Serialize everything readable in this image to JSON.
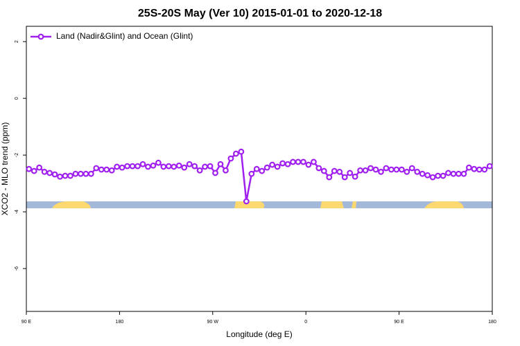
{
  "chart_data": {
    "type": "line",
    "title": "25S-20S May (Ver 10)   2015-01-01 to 2020-12-18",
    "xlabel": "Longitude (deg E)",
    "ylabel": "XCO2 - MLO trend (ppm)",
    "xlim": [
      90,
      540
    ],
    "ylim": [
      -7.51,
      2.54
    ],
    "xticks": [
      {
        "value": 90,
        "label": "90 E"
      },
      180,
      {
        "value": 270,
        "label": "90 W"
      },
      {
        "value": 360,
        "label": "0"
      },
      {
        "value": 450,
        "label": "90 E"
      },
      {
        "value": 540,
        "label": "180"
      }
    ],
    "yticks": [
      2,
      0,
      -2,
      -4,
      -6
    ],
    "grid": false,
    "legend": "upper left",
    "x": [
      92.5,
      97.5,
      102.5,
      107.5,
      112.5,
      117.5,
      122.5,
      127.5,
      132.5,
      137.5,
      142.5,
      147.5,
      152.5,
      157.5,
      162.5,
      167.5,
      172.5,
      177.5,
      182.5,
      187.5,
      192.5,
      197.5,
      202.5,
      207.5,
      212.5,
      217.5,
      222.5,
      227.5,
      232.5,
      237.5,
      242.5,
      247.5,
      252.5,
      257.5,
      262.5,
      267.5,
      272.5,
      277.5,
      282.5,
      287.5,
      292.5,
      297.5,
      302.5,
      307.5,
      312.5,
      317.5,
      322.5,
      327.5,
      332.5,
      337.5,
      342.5,
      347.5,
      352.5,
      357.5,
      362.5,
      367.5,
      372.5,
      377.5,
      382.5,
      387.5,
      392.5,
      397.5,
      402.5,
      407.5,
      412.5,
      417.5,
      422.5,
      427.5,
      432.5,
      437.5,
      442.5,
      447.5,
      452.5,
      457.5,
      462.5,
      467.5,
      472.5,
      477.5,
      482.5,
      487.5,
      492.5,
      497.5,
      502.5,
      507.5,
      512.5,
      517.5,
      522.5,
      527.5,
      532.5,
      537.5
    ],
    "series": [
      {
        "name": "Land (Nadir&Glint) and Ocean (Glint)",
        "color": "#a020f0",
        "values": [
          -2.49,
          -2.56,
          -2.44,
          -2.59,
          -2.63,
          -2.68,
          -2.76,
          -2.73,
          -2.73,
          -2.66,
          -2.66,
          -2.66,
          -2.66,
          -2.46,
          -2.51,
          -2.51,
          -2.54,
          -2.41,
          -2.44,
          -2.39,
          -2.39,
          -2.39,
          -2.32,
          -2.41,
          -2.37,
          -2.27,
          -2.41,
          -2.39,
          -2.41,
          -2.37,
          -2.44,
          -2.32,
          -2.39,
          -2.54,
          -2.41,
          -2.39,
          -2.63,
          -2.32,
          -2.54,
          -2.12,
          -1.95,
          -1.88,
          -3.63,
          -2.66,
          -2.49,
          -2.56,
          -2.44,
          -2.34,
          -2.41,
          -2.29,
          -2.32,
          -2.24,
          -2.24,
          -2.24,
          -2.34,
          -2.24,
          -2.46,
          -2.56,
          -2.78,
          -2.56,
          -2.59,
          -2.78,
          -2.63,
          -2.76,
          -2.54,
          -2.54,
          -2.46,
          -2.51,
          -2.59,
          -2.46,
          -2.51,
          -2.51,
          -2.51,
          -2.59,
          -2.46,
          -2.59,
          -2.66,
          -2.71,
          -2.78,
          -2.73,
          -2.73,
          -2.63,
          -2.66,
          -2.66,
          -2.66,
          -2.44,
          -2.49,
          -2.51,
          -2.51,
          -2.39
        ]
      }
    ]
  }
}
